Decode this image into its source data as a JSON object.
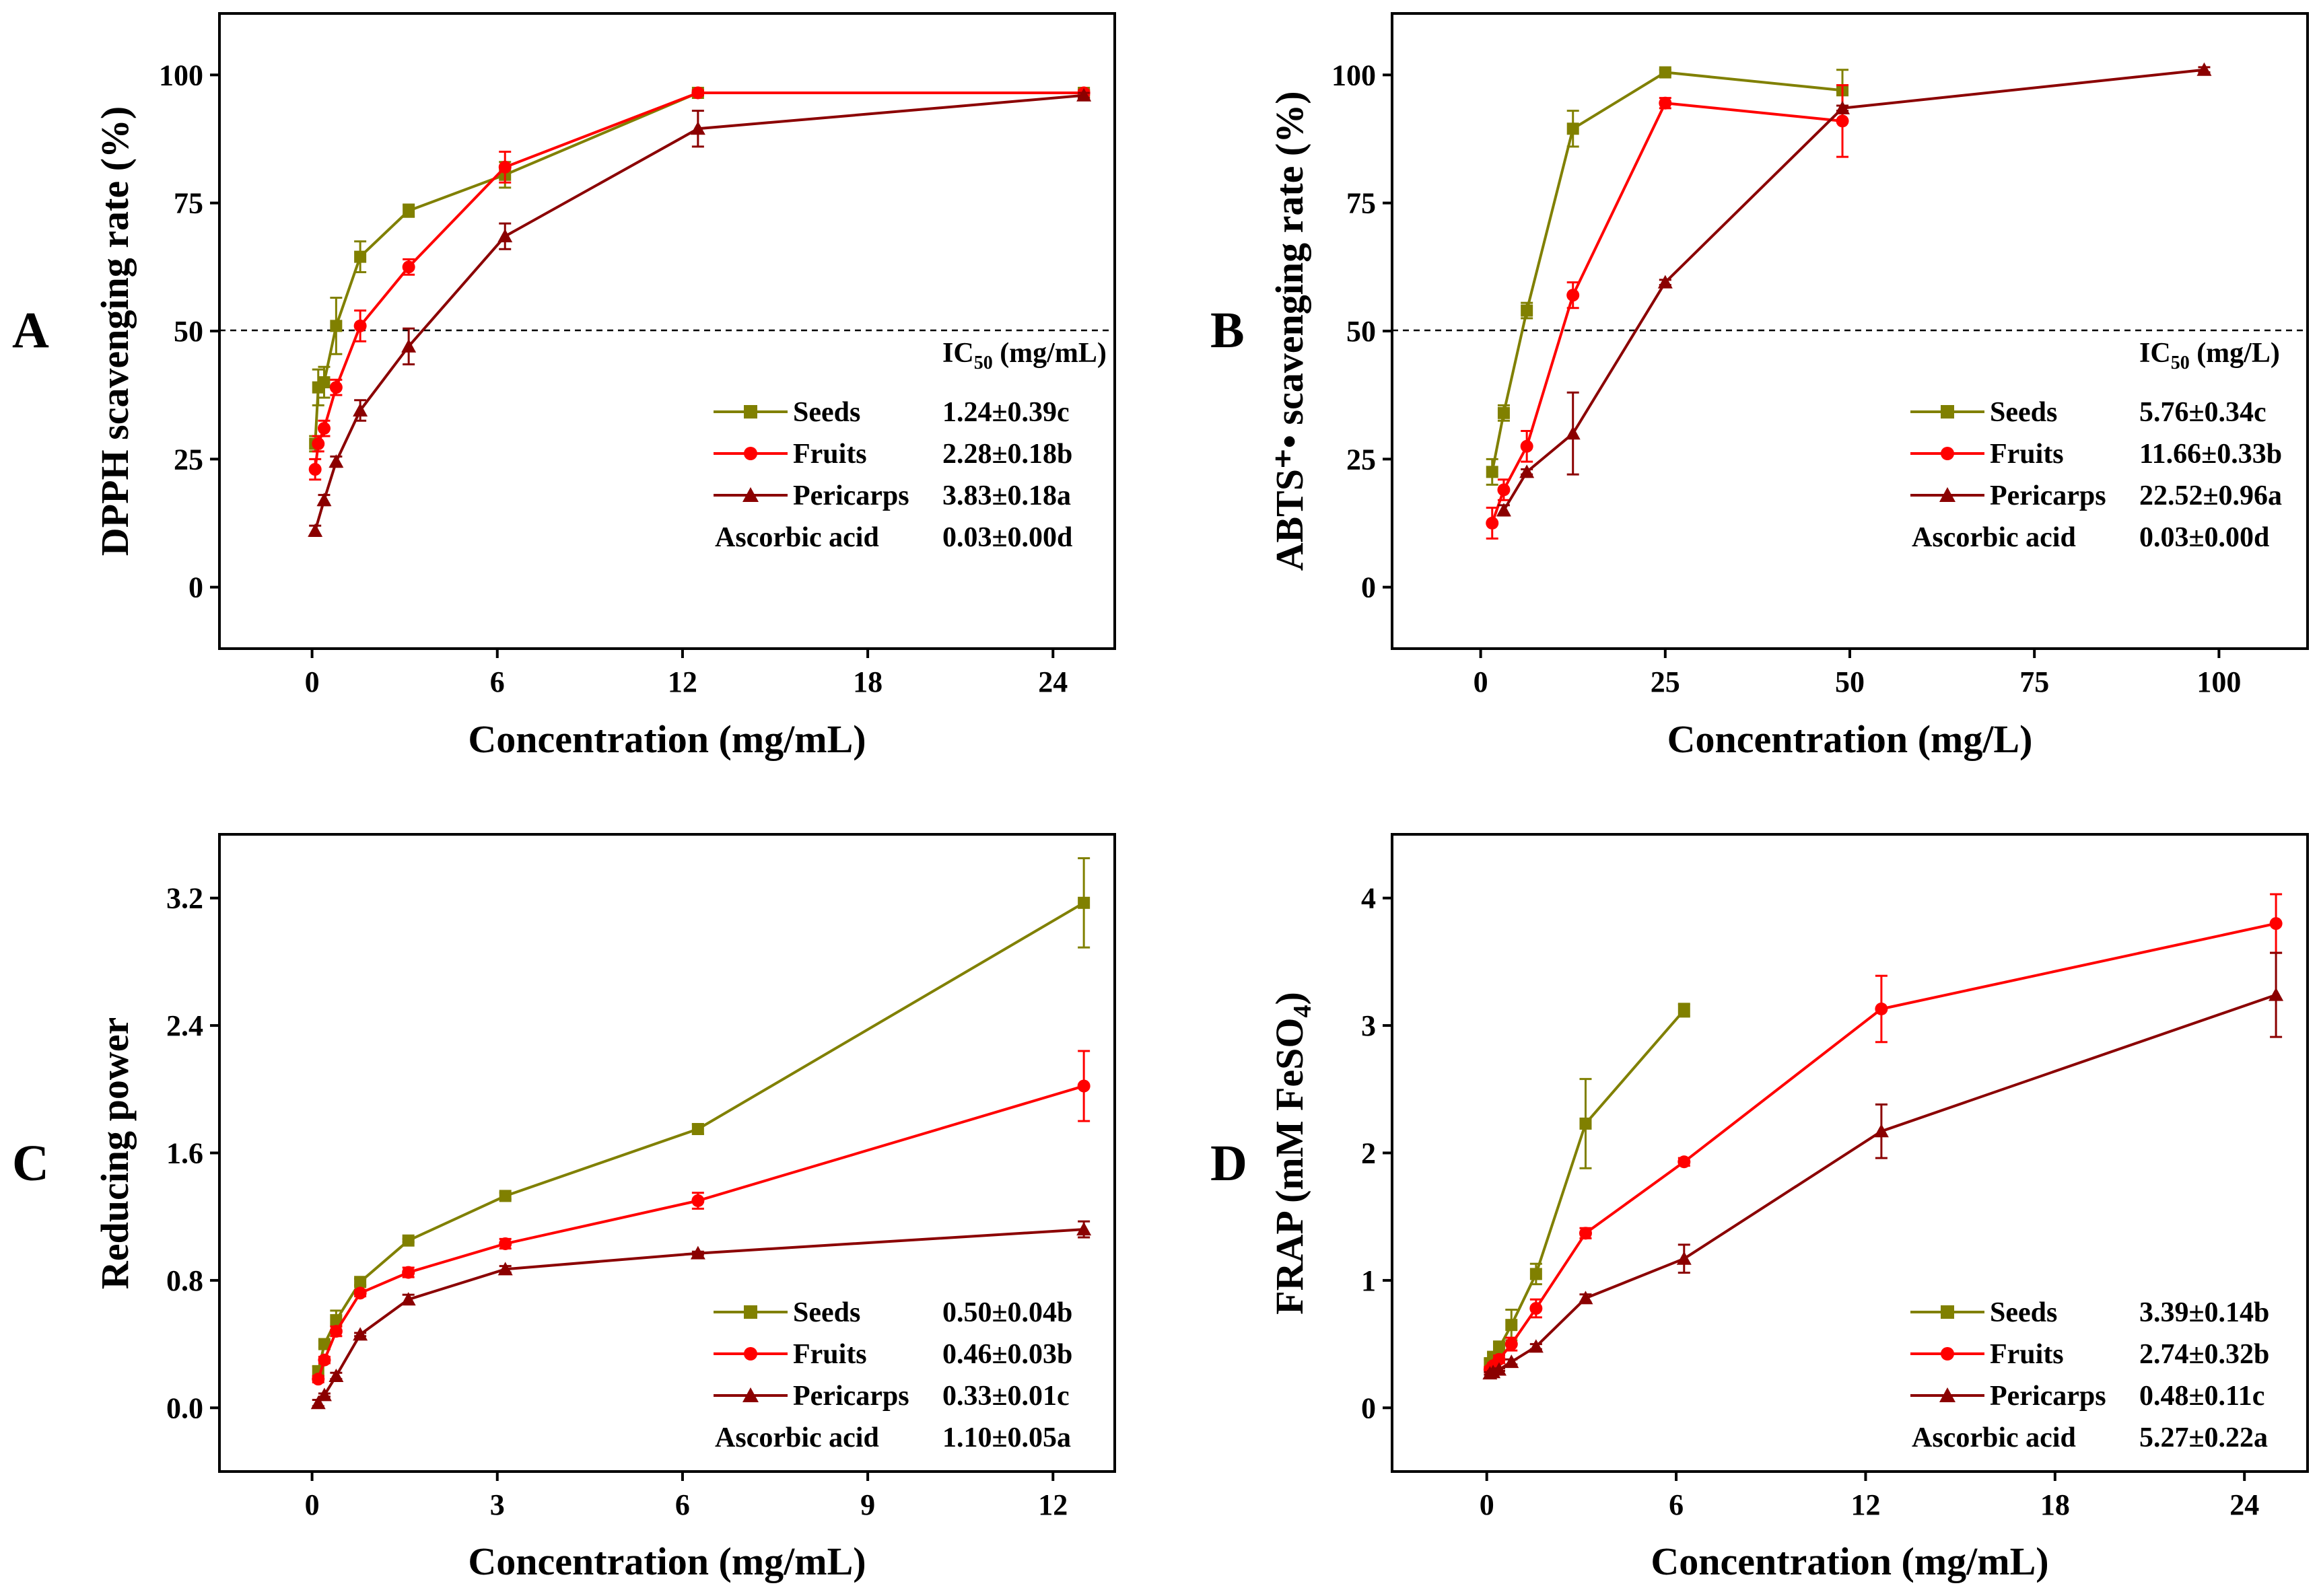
{
  "colors": {
    "seeds": "#808000",
    "fruits": "#ff0000",
    "pericarps": "#8b0000",
    "axis": "#000000"
  },
  "legend_labels": {
    "seeds": "Seeds",
    "fruits": "Fruits",
    "pericarps": "Pericarps",
    "ascorbic": "Ascorbic acid"
  },
  "chart_data": [
    {
      "panel": "A",
      "type": "line",
      "xlabel": "Concentration (mg/mL)",
      "ylabel": "DPPH scavenging rate (%)",
      "xlim": [
        -3,
        26
      ],
      "ylim": [
        -12,
        112
      ],
      "xticks": [
        0,
        6,
        12,
        18,
        24
      ],
      "yticks": [
        0,
        25,
        50,
        75,
        100
      ],
      "reference_line": 50,
      "ic50_header": {
        "main": "IC",
        "sub": "50",
        "unit": " (mg/mL)"
      },
      "ic50_values": {
        "seeds": "1.24±0.39c",
        "fruits": "2.28±0.18b",
        "pericarps": "3.83±0.18a",
        "ascorbic": "0.03±0.00d"
      },
      "series": [
        {
          "key": "seeds",
          "name": "Seeds",
          "marker": "square",
          "x": [
            0.1,
            0.2,
            0.39,
            0.78,
            1.56,
            3.13,
            6.25,
            12.5,
            25
          ],
          "y": [
            28,
            39,
            40,
            51,
            64.5,
            73.5,
            80.5,
            96.5,
            96.5
          ],
          "err": [
            1.5,
            3.5,
            3,
            5.5,
            3,
            1.2,
            2.5,
            0.5,
            0.5
          ]
        },
        {
          "key": "fruits",
          "name": "Fruits",
          "marker": "circle",
          "x": [
            0.1,
            0.2,
            0.39,
            0.78,
            1.56,
            3.13,
            6.25,
            12.5,
            25
          ],
          "y": [
            23,
            28,
            31,
            39,
            51,
            62.5,
            82,
            96.5,
            96.5
          ],
          "err": [
            2,
            1.5,
            1.5,
            1.5,
            3,
            1.5,
            3,
            0.5,
            0.5
          ]
        },
        {
          "key": "pericarps",
          "name": "Pericarps",
          "marker": "triangle",
          "x": [
            0.1,
            0.39,
            0.78,
            1.56,
            3.13,
            6.25,
            12.5,
            25
          ],
          "y": [
            11,
            17,
            24.5,
            34.5,
            47,
            68.5,
            89.5,
            96
          ],
          "err": [
            1,
            1,
            1,
            2,
            3.5,
            2.5,
            3.5,
            0.5
          ]
        }
      ]
    },
    {
      "panel": "B",
      "type": "line",
      "xlabel": "Concentration (mg/L)",
      "ylabel": "ABTS⁺• scavenging rate (%)",
      "xlim": [
        -12,
        112
      ],
      "ylim": [
        -12,
        112
      ],
      "xticks": [
        0,
        25,
        50,
        75,
        100
      ],
      "yticks": [
        0,
        25,
        50,
        75,
        100
      ],
      "reference_line": 50,
      "ic50_header": {
        "main": "IC",
        "sub": "50",
        "unit": " (mg/L)"
      },
      "ic50_values": {
        "seeds": "5.76±0.34c",
        "fruits": "11.66±0.33b",
        "pericarps": "22.52±0.96a",
        "ascorbic": "0.03±0.00d"
      },
      "series": [
        {
          "key": "seeds",
          "name": "Seeds",
          "marker": "square",
          "x": [
            1.56,
            3.13,
            6.25,
            12.5,
            25,
            49
          ],
          "y": [
            22.5,
            34,
            54,
            89.5,
            100.5,
            97
          ],
          "err": [
            2.5,
            1.5,
            1.5,
            3.5,
            0.5,
            4
          ]
        },
        {
          "key": "fruits",
          "name": "Fruits",
          "marker": "circle",
          "x": [
            1.56,
            3.13,
            6.25,
            12.5,
            25,
            49
          ],
          "y": [
            12.5,
            19,
            27.5,
            57,
            94.5,
            91
          ],
          "err": [
            3,
            2,
            3,
            2.5,
            1,
            7
          ]
        },
        {
          "key": "pericarps",
          "name": "Pericarps",
          "marker": "triangle",
          "x": [
            3.13,
            6.25,
            12.5,
            25,
            49,
            98
          ],
          "y": [
            15,
            22.5,
            30,
            59.5,
            93.5,
            101
          ],
          "err": [
            1,
            0.5,
            8,
            0.5,
            0.5,
            0.5
          ]
        }
      ]
    },
    {
      "panel": "C",
      "type": "line",
      "xlabel": "Concentration (mg/mL)",
      "ylabel": "Reducing power",
      "xlim": [
        -1.5,
        13
      ],
      "ylim": [
        -0.4,
        3.6
      ],
      "xticks": [
        0,
        3,
        6,
        9,
        12
      ],
      "yticks": [
        0.0,
        0.8,
        1.6,
        2.4,
        3.2
      ],
      "ytick_labels": [
        "0.0",
        "0.8",
        "1.6",
        "2.4",
        "3.2"
      ],
      "ic50_values": {
        "seeds": "0.50±0.04b",
        "fruits": "0.46±0.03b",
        "pericarps": "0.33±0.01c",
        "ascorbic": "1.10±0.05a"
      },
      "series": [
        {
          "key": "seeds",
          "name": "Seeds",
          "marker": "square",
          "x": [
            0.1,
            0.2,
            0.39,
            0.78,
            1.56,
            3.13,
            6.25,
            12.5
          ],
          "y": [
            0.23,
            0.4,
            0.55,
            0.79,
            1.05,
            1.33,
            1.75,
            3.17
          ],
          "err": [
            0.03,
            0.02,
            0.06,
            0.02,
            0.01,
            0.02,
            0.03,
            0.28
          ]
        },
        {
          "key": "fruits",
          "name": "Fruits",
          "marker": "circle",
          "x": [
            0.1,
            0.2,
            0.39,
            0.78,
            1.56,
            3.13,
            6.25,
            12.5
          ],
          "y": [
            0.18,
            0.3,
            0.48,
            0.72,
            0.85,
            1.03,
            1.3,
            2.02
          ],
          "err": [
            0.02,
            0.02,
            0.03,
            0.02,
            0.03,
            0.03,
            0.05,
            0.22
          ]
        },
        {
          "key": "pericarps",
          "name": "Pericarps",
          "marker": "triangle",
          "x": [
            0.1,
            0.2,
            0.39,
            0.78,
            1.56,
            3.13,
            6.25,
            12.5
          ],
          "y": [
            0.03,
            0.08,
            0.2,
            0.46,
            0.68,
            0.87,
            0.97,
            1.12
          ],
          "err": [
            0.02,
            0.01,
            0.02,
            0.01,
            0.03,
            0.02,
            0.01,
            0.05
          ]
        }
      ]
    },
    {
      "panel": "D",
      "type": "line",
      "xlabel": "Concentration (mg/mL)",
      "ylabel_main": "FRAP (mM FeSO",
      "ylabel_sub": "4",
      "ylabel_end": ")",
      "xlim": [
        -3,
        26
      ],
      "ylim": [
        -0.5,
        4.5
      ],
      "xticks": [
        0,
        6,
        12,
        18,
        24
      ],
      "yticks": [
        0,
        1,
        2,
        3,
        4
      ],
      "ic50_values": {
        "seeds": "3.39±0.14b",
        "fruits": "2.74±0.32b",
        "pericarps": "0.48±0.11c",
        "ascorbic": "5.27±0.22a"
      },
      "series": [
        {
          "key": "seeds",
          "name": "Seeds",
          "marker": "square",
          "x": [
            0.1,
            0.2,
            0.39,
            0.78,
            1.56,
            3.13,
            6.25
          ],
          "y": [
            0.35,
            0.4,
            0.47,
            0.65,
            1.05,
            2.23,
            3.12
          ],
          "err": [
            0.03,
            0.03,
            0.05,
            0.12,
            0.08,
            0.35,
            0.05
          ]
        },
        {
          "key": "fruits",
          "name": "Fruits",
          "marker": "circle",
          "x": [
            0.1,
            0.2,
            0.39,
            0.78,
            1.56,
            3.13,
            6.25,
            12.5,
            25
          ],
          "y": [
            0.3,
            0.33,
            0.38,
            0.5,
            0.78,
            1.37,
            1.93,
            3.13,
            3.8
          ],
          "err": [
            0.02,
            0.02,
            0.03,
            0.05,
            0.07,
            0.04,
            0.03,
            0.26,
            0.23
          ]
        },
        {
          "key": "pericarps",
          "name": "Pericarps",
          "marker": "triangle",
          "x": [
            0.1,
            0.2,
            0.39,
            0.78,
            1.56,
            3.13,
            6.25,
            12.5,
            25
          ],
          "y": [
            0.27,
            0.28,
            0.3,
            0.36,
            0.48,
            0.86,
            1.17,
            2.17,
            3.24
          ],
          "err": [
            0.01,
            0.01,
            0.01,
            0.02,
            0.02,
            0.03,
            0.11,
            0.21,
            0.33
          ]
        }
      ]
    }
  ]
}
